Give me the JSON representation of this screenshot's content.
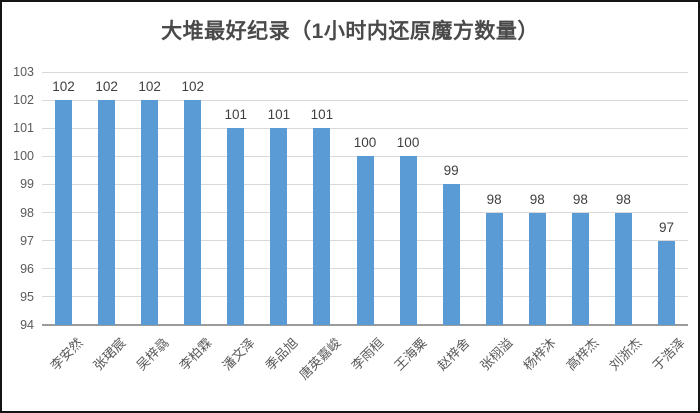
{
  "frame": {
    "background": "#ffffff",
    "border_color": "#141414"
  },
  "chart_data": {
    "type": "bar",
    "title": "大堆最好纪录（1小时内还原魔方数量）",
    "categories": [
      "李安然",
      "张珺宸",
      "吴梓骉",
      "李柏霖",
      "潘文泽",
      "季品旭",
      "唐英嘉峻",
      "李雨桓",
      "王海粟",
      "赵梓舍",
      "张栩溢",
      "杨梓沐",
      "高梓杰",
      "刘浙杰",
      "于浩泽"
    ],
    "values": [
      102,
      102,
      102,
      102,
      101,
      101,
      101,
      100,
      100,
      99,
      98,
      98,
      98,
      98,
      97
    ],
    "data_labels": [
      102,
      102,
      102,
      102,
      101,
      101,
      101,
      100,
      100,
      99,
      98,
      98,
      98,
      98,
      97
    ],
    "xlabel": "",
    "ylabel": "",
    "ylim": [
      94,
      103
    ],
    "yticks": [
      94,
      95,
      96,
      97,
      98,
      99,
      100,
      101,
      102,
      103
    ],
    "grid": true,
    "legend_position": "none",
    "x_label_rotation_deg": -45,
    "bar_color": "#5B9BD5",
    "gridline_color": "#D9D9D9",
    "axis_line_color": "#9B9B9B",
    "axis_text_color": "#595959",
    "value_label_color": "#3F3F3F",
    "title_color": "#4A4A4A"
  }
}
